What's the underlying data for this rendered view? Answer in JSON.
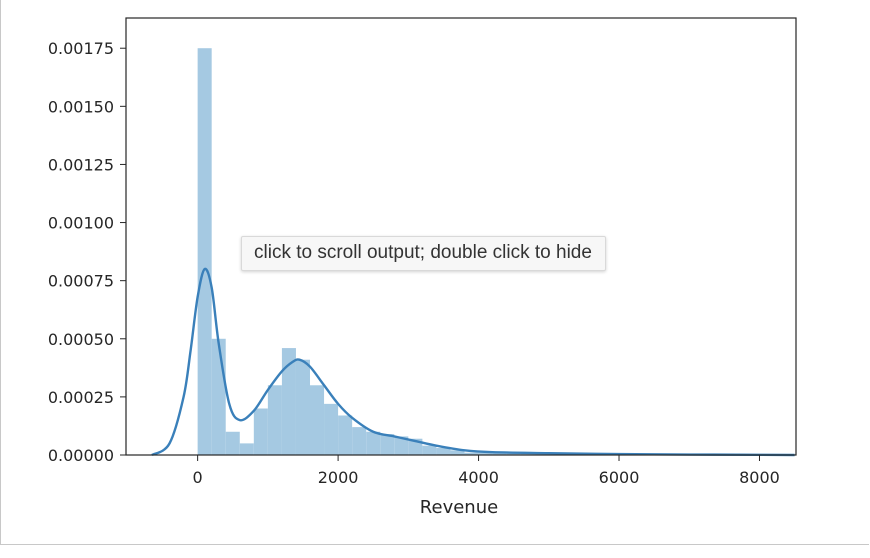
{
  "output_area": {
    "tooltip": "click to scroll output; double click to hide"
  },
  "chart_data": {
    "type": "bar",
    "xlabel": "Revenue",
    "ylabel": "",
    "title": "",
    "xlim": [
      -1020,
      8520
    ],
    "ylim": [
      0,
      0.00188
    ],
    "grid": false,
    "legend": "none",
    "xticks": [
      0,
      2000,
      4000,
      6000,
      8000
    ],
    "xtick_labels": [
      "0",
      "2000",
      "4000",
      "6000",
      "8000"
    ],
    "yticks": [
      0,
      0.00025,
      0.0005,
      0.00075,
      0.001,
      0.00125,
      0.0015,
      0.00175
    ],
    "ytick_labels": [
      "0.00000",
      "0.00025",
      "0.00050",
      "0.00075",
      "0.00100",
      "0.00125",
      "0.00150",
      "0.00175"
    ],
    "histogram": {
      "bin_edges": [
        0,
        200,
        400,
        600,
        800,
        1000,
        1200,
        1400,
        1600,
        1800,
        2000,
        2200,
        2400,
        2600,
        2800,
        3000,
        3200,
        3400,
        3600,
        3800,
        4000,
        4200,
        4400,
        4600,
        4800,
        5000,
        5200,
        5400,
        5600,
        5800,
        6000,
        6200,
        6400,
        6600,
        6800,
        7000,
        7200,
        7400,
        7600,
        7800,
        8000,
        8200,
        8400
      ],
      "density": [
        0.00175,
        0.0005,
        0.0001,
        5e-05,
        0.0002,
        0.0003,
        0.00046,
        0.00041,
        0.0003,
        0.00022,
        0.00017,
        0.00012,
        0.0001,
        9e-05,
        8e-05,
        7e-05,
        4e-05,
        3e-05,
        2e-05,
        1e-05,
        1e-05,
        1e-05,
        1e-05,
        1e-05,
        1e-05,
        8e-06,
        6e-06,
        6e-06,
        5e-06,
        5e-06,
        4e-06,
        4e-06,
        4e-06,
        3e-06,
        3e-06,
        3e-06,
        3e-06,
        2e-06,
        2e-06,
        2e-06,
        2e-06,
        2e-06
      ]
    },
    "kde": {
      "x": [
        -650,
        -400,
        -200,
        -100,
        0,
        100,
        200,
        300,
        450,
        600,
        800,
        1000,
        1200,
        1350,
        1450,
        1600,
        1800,
        2000,
        2200,
        2500,
        2800,
        3100,
        3400,
        3800,
        4200,
        5000,
        6000,
        7000,
        8000,
        8500
      ],
      "y": [
        0,
        5e-05,
        0.00025,
        0.00045,
        0.00068,
        0.0008,
        0.00072,
        0.00048,
        0.00022,
        0.00015,
        0.00019,
        0.00028,
        0.00036,
        0.0004,
        0.00041,
        0.00038,
        0.0003,
        0.00022,
        0.00016,
        0.0001,
        8e-05,
        6e-05,
        4e-05,
        2e-05,
        1.2e-05,
        8e-06,
        4e-06,
        2e-06,
        1e-06,
        0
      ]
    },
    "colors": {
      "bar_fill": "#a5c9e2",
      "line": "#3a80ba",
      "axes": "#262626"
    }
  }
}
